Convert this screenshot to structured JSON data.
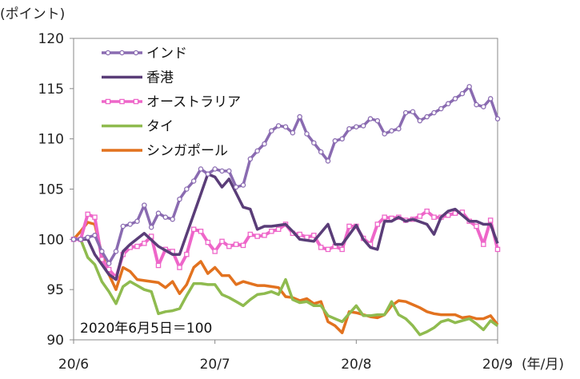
{
  "chart_data": {
    "type": "line",
    "y_unit_label": "(ポイント)",
    "x_unit_label": "(年/月)",
    "annotation": "2020年6月5日＝100",
    "ylim": [
      90,
      120
    ],
    "yticks": [
      90,
      95,
      100,
      105,
      110,
      115,
      120
    ],
    "x_range": [
      0,
      3
    ],
    "xticks": [
      {
        "x": 0,
        "label": "20/6"
      },
      {
        "x": 1,
        "label": "20/7"
      },
      {
        "x": 2,
        "label": "20/8"
      },
      {
        "x": 3,
        "label": "20/9"
      }
    ],
    "colors": {
      "india": "#8a6bb1",
      "hongkong": "#5a3d78",
      "australia": "#ee66c9",
      "thailand": "#8fbb4f",
      "singapore": "#e2721f"
    },
    "series": [
      {
        "key": "india",
        "name": "インド",
        "marker": "circle",
        "x": [
          0,
          0.05,
          0.1,
          0.15,
          0.2,
          0.25,
          0.3,
          0.35,
          0.4,
          0.45,
          0.5,
          0.55,
          0.6,
          0.65,
          0.7,
          0.75,
          0.8,
          0.85,
          0.9,
          0.95,
          1.0,
          1.05,
          1.1,
          1.15,
          1.2,
          1.25,
          1.3,
          1.35,
          1.4,
          1.45,
          1.5,
          1.55,
          1.6,
          1.65,
          1.7,
          1.75,
          1.8,
          1.85,
          1.9,
          1.95,
          2.0,
          2.05,
          2.1,
          2.15,
          2.2,
          2.25,
          2.3,
          2.35,
          2.4,
          2.45,
          2.5,
          2.55,
          2.6,
          2.65,
          2.7,
          2.75,
          2.8,
          2.85,
          2.9,
          2.95,
          3.0
        ],
        "y": [
          100,
          100,
          100.2,
          100.4,
          98.8,
          97.6,
          98.8,
          101.3,
          101.5,
          101.8,
          103.4,
          101.2,
          102.6,
          102.2,
          102,
          104,
          105,
          105.8,
          107,
          106.5,
          107,
          106.8,
          106.8,
          105.2,
          105.4,
          108,
          108.8,
          109.5,
          110.8,
          111.3,
          111.2,
          110.6,
          112.2,
          110.5,
          109.6,
          108.7,
          107.8,
          109.8,
          110,
          111,
          111.2,
          111.3,
          112,
          111.8,
          110.5,
          110.8,
          111,
          112.6,
          112.7,
          111.8,
          112.2,
          112.6,
          113,
          113.5,
          114,
          114.5,
          115.2,
          113.4,
          113.2,
          114,
          112
        ]
      },
      {
        "key": "hongkong",
        "name": "香港",
        "marker": "none",
        "x": [
          0,
          0.1,
          0.15,
          0.2,
          0.25,
          0.3,
          0.35,
          0.4,
          0.5,
          0.6,
          0.7,
          0.75,
          0.8,
          0.9,
          0.95,
          1.0,
          1.05,
          1.1,
          1.2,
          1.25,
          1.3,
          1.35,
          1.4,
          1.5,
          1.55,
          1.6,
          1.7,
          1.8,
          1.85,
          1.9,
          2.0,
          2.05,
          2.1,
          2.15,
          2.2,
          2.25,
          2.3,
          2.35,
          2.4,
          2.5,
          2.55,
          2.6,
          2.65,
          2.7,
          2.8,
          2.85,
          2.9,
          2.95,
          3.0
        ],
        "y": [
          100,
          100,
          98.5,
          97.5,
          96.5,
          96,
          98.8,
          99.5,
          100.6,
          99.3,
          98.5,
          98.5,
          100.5,
          104.5,
          106.5,
          106.2,
          105.2,
          106,
          103.2,
          103,
          101,
          101.3,
          101.3,
          101.5,
          100.8,
          100,
          99.8,
          101.5,
          99.5,
          99.5,
          101.4,
          100,
          99.2,
          99,
          101.8,
          101.8,
          102.2,
          101.8,
          102,
          101.5,
          100.5,
          102.2,
          102.8,
          103,
          101.8,
          101.8,
          101.5,
          101.5,
          99.6
        ]
      },
      {
        "key": "australia",
        "name": "オーストラリア",
        "marker": "square",
        "x": [
          0,
          0.05,
          0.1,
          0.15,
          0.2,
          0.25,
          0.3,
          0.35,
          0.4,
          0.45,
          0.5,
          0.55,
          0.6,
          0.65,
          0.7,
          0.75,
          0.8,
          0.85,
          0.9,
          0.95,
          1.0,
          1.05,
          1.1,
          1.15,
          1.2,
          1.25,
          1.3,
          1.35,
          1.4,
          1.45,
          1.5,
          1.55,
          1.6,
          1.65,
          1.7,
          1.75,
          1.8,
          1.85,
          1.9,
          1.95,
          2.0,
          2.05,
          2.1,
          2.15,
          2.2,
          2.25,
          2.3,
          2.35,
          2.4,
          2.45,
          2.5,
          2.55,
          2.6,
          2.65,
          2.7,
          2.75,
          2.8,
          2.85,
          2.9,
          2.95,
          3.0
        ],
        "y": [
          100,
          100,
          102.5,
          102.2,
          98,
          97,
          96.2,
          98.5,
          99.2,
          99.3,
          99.6,
          100.3,
          97.4,
          99,
          98.8,
          97.2,
          98.5,
          101,
          100.8,
          99.7,
          98.8,
          99.8,
          99.3,
          99.5,
          99.4,
          100.5,
          100.3,
          100.4,
          100.8,
          101,
          101.5,
          100.6,
          100.5,
          100.2,
          100.4,
          99.2,
          99,
          99.3,
          99,
          101.3,
          101.3,
          100.1,
          99.5,
          101.5,
          102.2,
          102.1,
          102.2,
          101.9,
          102,
          102.3,
          102.8,
          102.2,
          102.2,
          102.4,
          102.6,
          102.7,
          101.8,
          101.3,
          99.5,
          101.9,
          99
        ]
      },
      {
        "key": "thailand",
        "name": "タイ",
        "marker": "none",
        "x": [
          0,
          0.05,
          0.1,
          0.15,
          0.2,
          0.25,
          0.3,
          0.35,
          0.4,
          0.45,
          0.5,
          0.55,
          0.6,
          0.65,
          0.7,
          0.75,
          0.8,
          0.85,
          0.9,
          0.95,
          1.0,
          1.05,
          1.1,
          1.15,
          1.2,
          1.25,
          1.3,
          1.35,
          1.4,
          1.45,
          1.5,
          1.55,
          1.6,
          1.65,
          1.7,
          1.75,
          1.8,
          1.85,
          1.9,
          1.95,
          2.0,
          2.05,
          2.1,
          2.15,
          2.2,
          2.25,
          2.3,
          2.35,
          2.4,
          2.45,
          2.5,
          2.55,
          2.6,
          2.65,
          2.7,
          2.75,
          2.8,
          2.85,
          2.9,
          2.95,
          3.0
        ],
        "y": [
          100,
          100,
          98.2,
          97.5,
          95.8,
          94.8,
          93.6,
          95.3,
          95.8,
          95.4,
          95,
          94.8,
          92.6,
          92.8,
          92.9,
          93.1,
          94.4,
          95.6,
          95.6,
          95.5,
          95.5,
          94.5,
          94.2,
          93.8,
          93.4,
          94,
          94.5,
          94.6,
          94.8,
          94.5,
          96,
          94,
          93.7,
          93.8,
          93.4,
          93.4,
          92.4,
          92.1,
          91.8,
          92.6,
          93.4,
          92.4,
          92.4,
          92.5,
          92.5,
          93.8,
          92.5,
          92.1,
          91.4,
          90.5,
          90.8,
          91.2,
          91.8,
          92,
          91.7,
          91.9,
          92.1,
          91.6,
          91,
          91.9,
          91.4
        ]
      },
      {
        "key": "singapore",
        "name": "シンガポール",
        "marker": "none",
        "x": [
          0,
          0.05,
          0.1,
          0.15,
          0.2,
          0.25,
          0.3,
          0.35,
          0.4,
          0.45,
          0.5,
          0.55,
          0.6,
          0.65,
          0.7,
          0.75,
          0.8,
          0.85,
          0.9,
          0.95,
          1.0,
          1.05,
          1.1,
          1.15,
          1.2,
          1.25,
          1.3,
          1.35,
          1.4,
          1.45,
          1.5,
          1.55,
          1.6,
          1.65,
          1.7,
          1.75,
          1.8,
          1.85,
          1.9,
          1.95,
          2.0,
          2.05,
          2.1,
          2.15,
          2.2,
          2.25,
          2.3,
          2.35,
          2.4,
          2.45,
          2.5,
          2.55,
          2.6,
          2.65,
          2.7,
          2.75,
          2.8,
          2.85,
          2.9,
          2.95,
          3.0
        ],
        "y": [
          100,
          100.8,
          101.7,
          101.5,
          98.5,
          96.5,
          95,
          97.2,
          96.8,
          96,
          95.9,
          95.8,
          95.7,
          95.2,
          95.8,
          94.6,
          95.5,
          97.2,
          97.8,
          96.6,
          97.2,
          96.4,
          96.4,
          95.5,
          95.8,
          95.6,
          95.4,
          95.4,
          95.3,
          95.2,
          94.3,
          94.2,
          93.9,
          94.1,
          93.6,
          93.8,
          91.8,
          91.4,
          90.7,
          92.8,
          92.7,
          92.5,
          92.3,
          92.2,
          92.5,
          93.4,
          93.9,
          93.8,
          93.5,
          93.2,
          92.8,
          92.6,
          92.5,
          92.5,
          92.5,
          92.2,
          92.3,
          92.1,
          92.1,
          92.4,
          91.5
        ]
      }
    ]
  }
}
